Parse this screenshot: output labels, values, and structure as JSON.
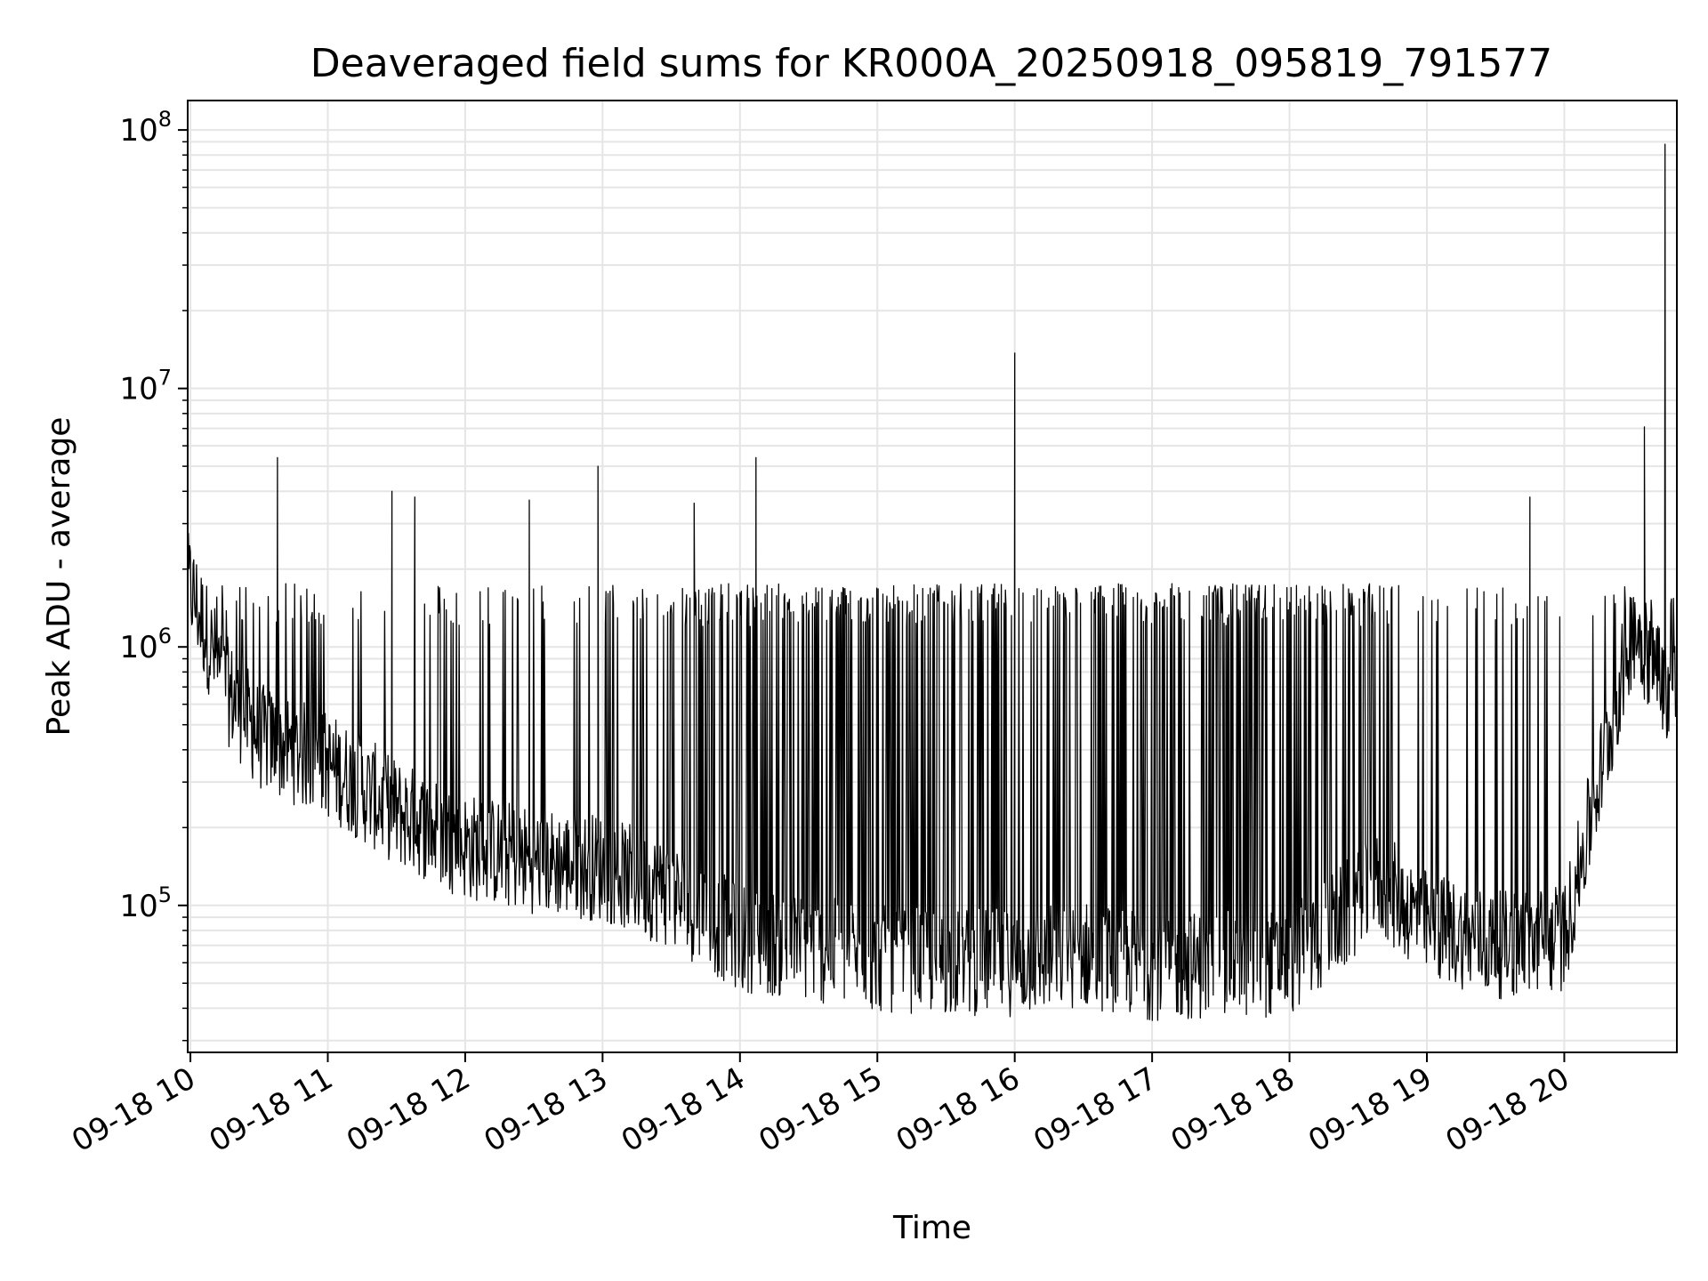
{
  "chart_data": {
    "type": "line",
    "title": "Deaveraged field sums for KR000A_20250918_095819_791577",
    "xlabel": "Time",
    "ylabel": "Peak ADU - average",
    "y_scale": "log",
    "ylim": [
      27000,
      130000000
    ],
    "xlim": [
      "09-18 09:58:49",
      "09-18 20:49:10"
    ],
    "x_ticks": [
      "09-18 10",
      "09-18 11",
      "09-18 12",
      "09-18 13",
      "09-18 14",
      "09-18 15",
      "09-18 16",
      "09-18 17",
      "09-18 18",
      "09-18 19",
      "09-18 20"
    ],
    "y_ticks": [
      {
        "base": "10",
        "exp": "5"
      },
      {
        "base": "10",
        "exp": "6"
      },
      {
        "base": "10",
        "exp": "7"
      },
      {
        "base": "10",
        "exp": "8"
      }
    ],
    "grid": true,
    "line_color": "#000000",
    "grid_color": "#e5e5e5",
    "baseline_profile": [
      {
        "x": "09-18 10:00",
        "y": 1700000
      },
      {
        "x": "09-18 10:15",
        "y": 700000
      },
      {
        "x": "09-18 10:30",
        "y": 450000
      },
      {
        "x": "09-18 11:00",
        "y": 350000
      },
      {
        "x": "09-18 11:30",
        "y": 230000
      },
      {
        "x": "09-18 12:00",
        "y": 170000
      },
      {
        "x": "09-18 12:30",
        "y": 150000
      },
      {
        "x": "09-18 13:00",
        "y": 140000
      },
      {
        "x": "09-18 13:30",
        "y": 110000
      },
      {
        "x": "09-18 14:00",
        "y": 75000
      },
      {
        "x": "09-18 15:00",
        "y": 62000
      },
      {
        "x": "09-18 16:00",
        "y": 60000
      },
      {
        "x": "09-18 16:30",
        "y": 65000
      },
      {
        "x": "09-18 17:00",
        "y": 58000
      },
      {
        "x": "09-18 18:00",
        "y": 60000
      },
      {
        "x": "09-18 18:40",
        "y": 120000
      },
      {
        "x": "09-18 19:00",
        "y": 85000
      },
      {
        "x": "09-18 19:30",
        "y": 70000
      },
      {
        "x": "09-18 20:00",
        "y": 75000
      },
      {
        "x": "09-18 20:15",
        "y": 300000
      },
      {
        "x": "09-18 20:30",
        "y": 1200000
      },
      {
        "x": "09-18 20:45",
        "y": 700000
      }
    ],
    "burst_level": 1600000,
    "peaks": [
      {
        "x": "09-18 10:38",
        "y": 5400000
      },
      {
        "x": "09-18 11:28",
        "y": 4000000
      },
      {
        "x": "09-18 11:38",
        "y": 3800000
      },
      {
        "x": "09-18 12:28",
        "y": 3700000
      },
      {
        "x": "09-18 12:58",
        "y": 5000000
      },
      {
        "x": "09-18 13:40",
        "y": 3600000
      },
      {
        "x": "09-18 14:07",
        "y": 5400000
      },
      {
        "x": "09-18 16:00",
        "y": 13700000
      },
      {
        "x": "09-18 19:45",
        "y": 3800000
      },
      {
        "x": "09-18 20:35",
        "y": 7100000
      },
      {
        "x": "09-18 20:44",
        "y": 88000000
      }
    ]
  }
}
